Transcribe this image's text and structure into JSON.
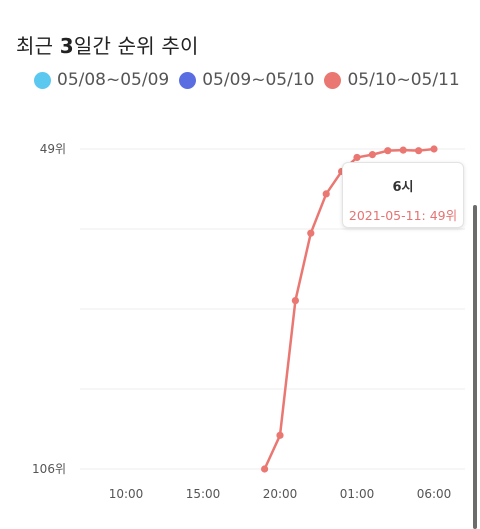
{
  "title": {
    "prefix": "최근 ",
    "bold": "3",
    "suffix": "일간 순위 추이"
  },
  "legend": [
    {
      "label": "05/08~05/09",
      "color": "#5bc8ef"
    },
    {
      "label": "05/09~05/10",
      "color": "#5b6ee1"
    },
    {
      "label": "05/10~05/11",
      "color": "#ea7771"
    }
  ],
  "tooltip": {
    "title": "6시",
    "value": "2021-05-11: 49위"
  },
  "chart_data": {
    "type": "line",
    "y_tick_labels": [
      "49위",
      "106위"
    ],
    "x_tick_labels": [
      "10:00",
      "15:00",
      "20:00",
      "01:00",
      "06:00"
    ],
    "ylim": [
      106,
      49
    ],
    "y_reversed": true,
    "grid": true,
    "legend_position": "top",
    "series": [
      {
        "name": "05/10~05/11",
        "color": "#ea7771",
        "x": [
          "19:00",
          "20:00",
          "21:00",
          "22:00",
          "23:00",
          "00:00",
          "01:00",
          "02:00",
          "03:00",
          "04:00",
          "05:00",
          "06:00"
        ],
        "values": [
          106,
          100,
          76,
          64,
          57,
          53,
          50.5,
          50,
          49.3,
          49.2,
          49.3,
          49
        ]
      }
    ]
  }
}
